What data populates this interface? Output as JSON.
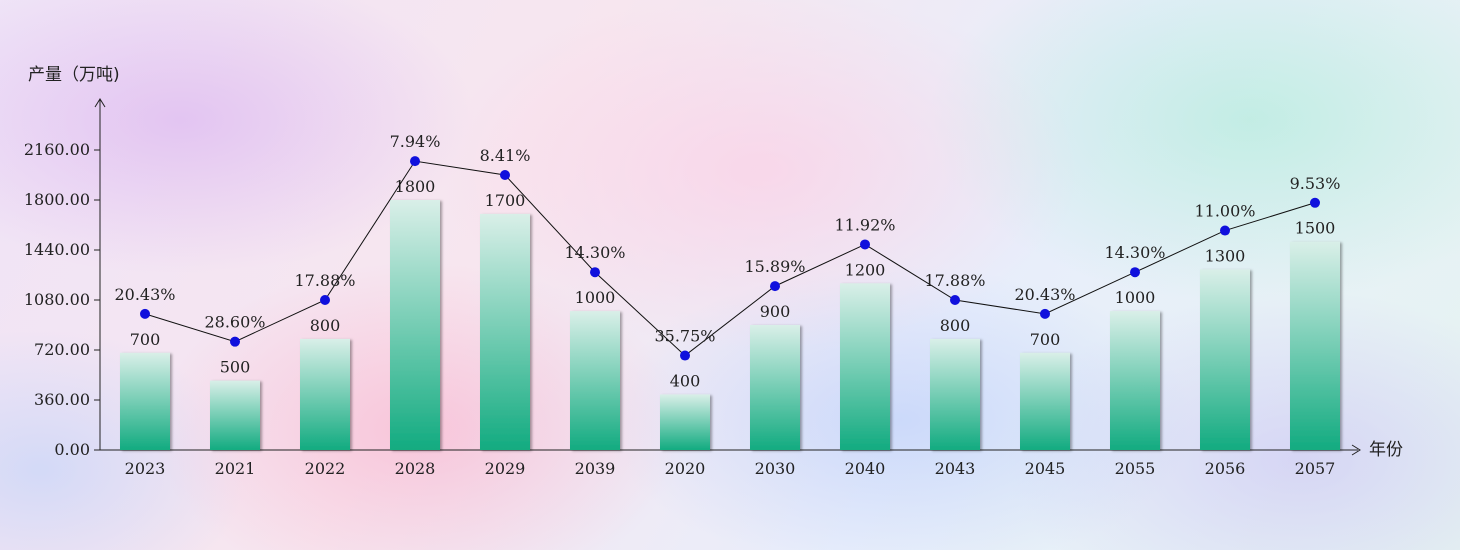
{
  "chart_data": {
    "type": "bar",
    "ylabel": "产量（万吨)",
    "xlabel": "年份",
    "ylim": [
      0,
      2160
    ],
    "yticks": [
      "0.00",
      "360.00",
      "720.00",
      "1080.00",
      "1440.00",
      "1800.00",
      "2160.00"
    ],
    "grid": false,
    "categories": [
      "2023",
      "2021",
      "2022",
      "2028",
      "2029",
      "2039",
      "2020",
      "2030",
      "2040",
      "2043",
      "2045",
      "2055",
      "2056",
      "2057"
    ],
    "series": [
      {
        "type": "bar",
        "values": [
          700,
          500,
          800,
          1800,
          1700,
          1000,
          400,
          900,
          1200,
          800,
          700,
          1000,
          1300,
          1500
        ],
        "color_top": "#d9efe8",
        "color_bottom": "#12ab80"
      },
      {
        "type": "line",
        "values": [
          20.43,
          28.6,
          17.88,
          7.94,
          8.41,
          14.3,
          35.75,
          15.89,
          11.92,
          17.88,
          20.43,
          14.3,
          11.0,
          9.53
        ],
        "labels": [
          "20.43%",
          "28.60%",
          "17.88%",
          "7.94%",
          "8.41%",
          "14.30%",
          "35.75%",
          "15.89%",
          "11.92%",
          "17.88%",
          "20.43%",
          "14.30%",
          "11.00%",
          "9.53%"
        ],
        "plotted_at": [
          980,
          780,
          1080,
          2080,
          1980,
          1280,
          680,
          1180,
          1480,
          1080,
          980,
          1280,
          1580,
          1780
        ],
        "marker_color": "#1010dd",
        "line_color": "#111111"
      }
    ]
  }
}
